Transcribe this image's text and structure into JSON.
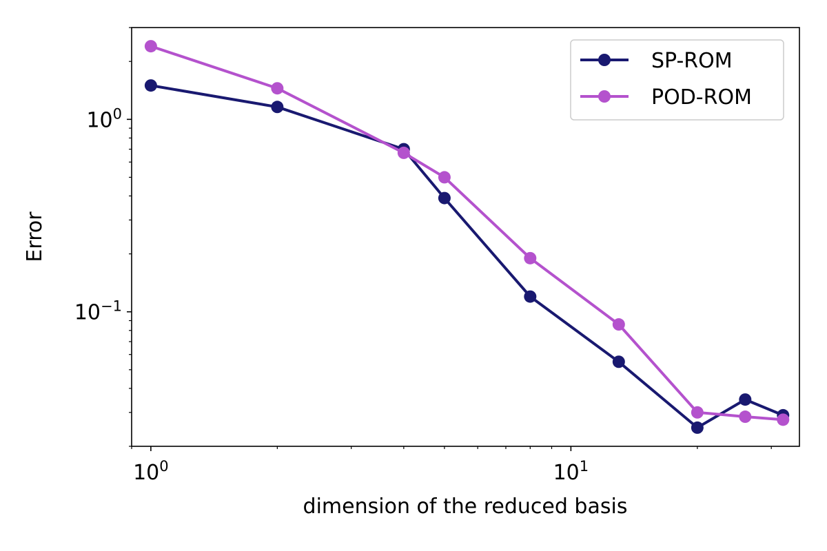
{
  "chart_data": {
    "type": "line",
    "xscale": "log",
    "yscale": "log",
    "xlabel": "dimension of the reduced basis",
    "ylabel": "Error",
    "xlim": [
      0.9,
      35
    ],
    "ylim": [
      0.02,
      3.0
    ],
    "grid": false,
    "legend_position": "top-right",
    "x_ticks": [
      {
        "value": 1,
        "base": "10",
        "exp": "0"
      },
      {
        "value": 10,
        "base": "10",
        "exp": "1"
      }
    ],
    "y_ticks": [
      {
        "value": 1,
        "base": "10",
        "exp": "0"
      },
      {
        "value": 0.1,
        "base": "10",
        "exp": "−1"
      }
    ],
    "series": [
      {
        "name": "SP-ROM",
        "color": "#191970",
        "x": [
          1,
          2,
          4,
          5,
          8,
          13,
          20,
          26,
          32
        ],
        "y": [
          1.5,
          1.16,
          0.7,
          0.39,
          0.12,
          0.055,
          0.025,
          0.035,
          0.029
        ]
      },
      {
        "name": "POD-ROM",
        "color": "#b452cd",
        "x": [
          1,
          2,
          4,
          5,
          8,
          13,
          20,
          26,
          32
        ],
        "y": [
          2.4,
          1.45,
          0.67,
          0.5,
          0.19,
          0.086,
          0.03,
          0.0285,
          0.0275
        ]
      }
    ]
  }
}
